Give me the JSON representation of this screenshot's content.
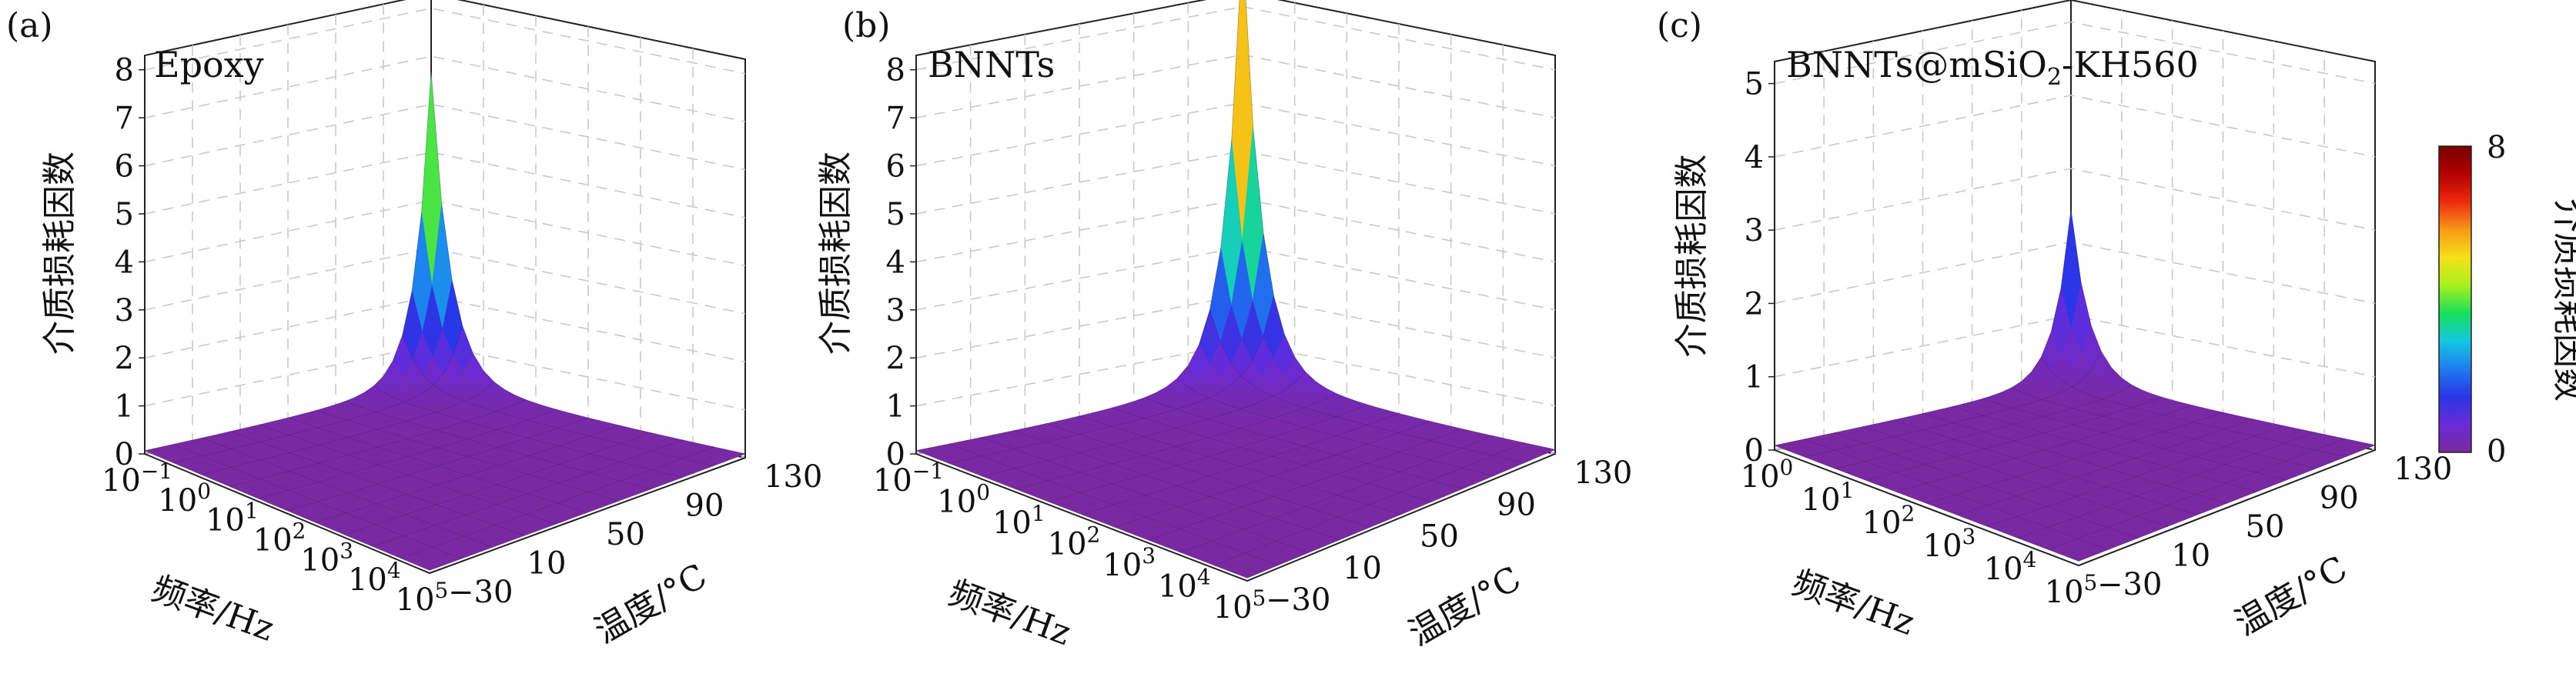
{
  "colors": {
    "low": "#7a1fa2",
    "high": "#7a0000"
  },
  "colormap": [
    "#7b2a9c",
    "#6a2bd8",
    "#2936e6",
    "#1e7cf0",
    "#14c8e0",
    "#19e05a",
    "#a8f01c",
    "#f5e11a",
    "#f59a14",
    "#ef2a10",
    "#b30000",
    "#7a0000"
  ],
  "colorbar": {
    "label": "介质损耗因数",
    "max_label": "8",
    "min_label": "0",
    "vmin": 0,
    "vmax": 8
  },
  "chart_data": [
    {
      "type": "surface",
      "panel": "(a)",
      "annotation": "Epoxy",
      "zlabel": "介质损耗因数",
      "xlabel": "频率/Hz",
      "ylabel": "温度/°C",
      "x_ticks": [
        "10−1",
        "100",
        "101",
        "102",
        "103",
        "104",
        "105"
      ],
      "y_ticks": [
        "−30",
        "10",
        "50",
        "90",
        "130"
      ],
      "z_ticks": [
        "0",
        "1",
        "2",
        "3",
        "4",
        "5",
        "6",
        "7",
        "8"
      ],
      "zlim": [
        0,
        8.3
      ],
      "xlim_log10": [
        -1,
        5
      ],
      "ylim": [
        -30,
        130
      ],
      "peak": {
        "log10_freq": -1,
        "temperature": 130,
        "value": 6.3
      }
    },
    {
      "type": "surface",
      "panel": "(b)",
      "annotation": "BNNTs",
      "zlabel": "介质损耗因数",
      "xlabel": "频率/Hz",
      "ylabel": "温度/°C",
      "x_ticks": [
        "10−1",
        "100",
        "101",
        "102",
        "103",
        "104",
        "105"
      ],
      "y_ticks": [
        "−30",
        "10",
        "50",
        "90",
        "130"
      ],
      "z_ticks": [
        "0",
        "1",
        "2",
        "3",
        "4",
        "5",
        "6",
        "7",
        "8"
      ],
      "zlim": [
        0,
        8.3
      ],
      "xlim_log10": [
        -1,
        5
      ],
      "ylim": [
        -30,
        130
      ],
      "peak": {
        "log10_freq": -1,
        "temperature": 130,
        "value": 8.8
      }
    },
    {
      "type": "surface",
      "panel": "(c)",
      "annotation": "BNNTs@mSiO2-KH560",
      "zlabel": "介质损耗因数",
      "xlabel": "频率/Hz",
      "ylabel": "温度/°C",
      "x_ticks": [
        "100",
        "101",
        "102",
        "103",
        "104",
        "105"
      ],
      "y_ticks": [
        "−30",
        "10",
        "50",
        "90",
        "130"
      ],
      "z_ticks": [
        "0",
        "1",
        "2",
        "3",
        "4",
        "5"
      ],
      "zlim": [
        0,
        5.3
      ],
      "xlim_log10": [
        0,
        5
      ],
      "ylim": [
        -30,
        130
      ],
      "peak": {
        "log10_freq": 0,
        "temperature": 130,
        "value": 2.3
      }
    }
  ]
}
